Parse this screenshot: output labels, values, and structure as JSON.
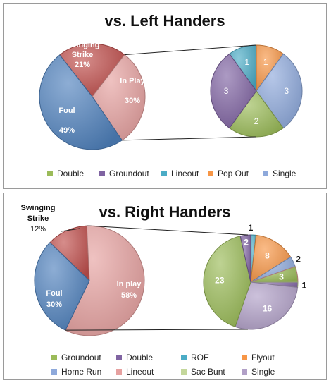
{
  "chart_data": [
    {
      "type": "pie",
      "title": "vs. Left Handers",
      "main_pie": {
        "slices": [
          {
            "label": "Swinging Strike",
            "value_label": "21%",
            "value": 21,
            "color": "#C0504D"
          },
          {
            "label": "In Play",
            "value_label": "30%",
            "value": 30,
            "color": "#E6A1A0"
          },
          {
            "label": "Foul",
            "value_label": "49%",
            "value": 49,
            "color": "#4F81BD"
          }
        ]
      },
      "breakdown_pie": {
        "of": "In Play",
        "slices": [
          {
            "category": "Lineout",
            "value": 1,
            "color": "#4BACC6"
          },
          {
            "category": "Pop Out",
            "value": 1,
            "color": "#F79646"
          },
          {
            "category": "Single",
            "value": 3,
            "color": "#8EA9DB"
          },
          {
            "category": "Double",
            "value": 2,
            "color": "#9BBB59"
          },
          {
            "category": "Groundout",
            "value": 3,
            "color": "#8064A2"
          }
        ]
      },
      "legend": [
        "Double",
        "Groundout",
        "Lineout",
        "Pop Out",
        "Single"
      ],
      "legend_colors": [
        "#9BBB59",
        "#8064A2",
        "#4BACC6",
        "#F79646",
        "#8EA9DB"
      ]
    },
    {
      "type": "pie",
      "title": "vs. Right Handers",
      "main_pie": {
        "slices": [
          {
            "label": "Swinging Strike",
            "value_label": "12%",
            "value": 12,
            "color": "#C0504D"
          },
          {
            "label": "In play",
            "value_label": "58%",
            "value": 58,
            "color": "#E6A1A0"
          },
          {
            "label": "Foul",
            "value_label": "30%",
            "value": 30,
            "color": "#4F81BD"
          }
        ]
      },
      "breakdown_pie": {
        "of": "In play",
        "slices": [
          {
            "category": "ROE",
            "value": 1,
            "color": "#4BACC6"
          },
          {
            "category": "Flyout",
            "value": 8,
            "color": "#F79646"
          },
          {
            "category": "Home Run",
            "value": 2,
            "color": "#8EA9DB"
          },
          {
            "category": "Lineout",
            "value": 3,
            "color": "#E6A1A0"
          },
          {
            "category": "Sac Bunt",
            "value": 1,
            "color": "#C4D79B"
          },
          {
            "category": "Single",
            "value": 16,
            "color": "#B1A0C7"
          },
          {
            "category": "Groundout",
            "value": 23,
            "color": "#9BBB59"
          },
          {
            "category": "Double",
            "value": 2,
            "color": "#8064A2"
          }
        ]
      },
      "legend": [
        "Groundout",
        "Double",
        "ROE",
        "Flyout",
        "Home Run",
        "Lineout",
        "Sac Bunt",
        "Single"
      ],
      "legend_colors": [
        "#9BBB59",
        "#8064A2",
        "#4BACC6",
        "#F79646",
        "#8EA9DB",
        "#E6A1A0",
        "#C4D79B",
        "#B1A0C7"
      ]
    }
  ]
}
